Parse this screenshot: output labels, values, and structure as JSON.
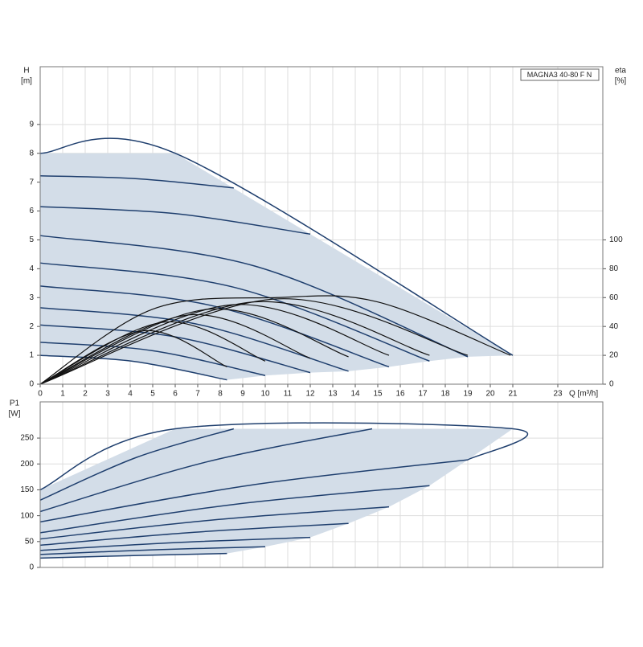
{
  "chart_data": [
    {
      "type": "line",
      "title": "MAGNA3 40-80 F N",
      "y_label": "H",
      "y_unit": "[m]",
      "y2_label": "eta",
      "y2_unit": "[%]",
      "x_label": "Q [m³/h]",
      "xlim": [
        0,
        25
      ],
      "xticks": [
        0,
        1,
        2,
        3,
        4,
        5,
        6,
        7,
        8,
        9,
        10,
        11,
        12,
        13,
        14,
        15,
        16,
        17,
        18,
        19,
        20,
        21,
        23
      ],
      "ylim": [
        0,
        11
      ],
      "yticks": [
        0,
        1,
        2,
        3,
        4,
        5,
        6,
        7,
        8,
        9
      ],
      "y2lim": [
        0,
        220
      ],
      "y2ticks": [
        0,
        20,
        40,
        60,
        80,
        100
      ],
      "grid": true,
      "area": {
        "color": "#d3dde8",
        "x": [
          0,
          6,
          21,
          19,
          17.3,
          15.5,
          13.7,
          12,
          10,
          8.3,
          4.15,
          0
        ],
        "y": [
          8,
          8,
          1,
          0.95,
          0.8,
          0.6,
          0.45,
          0.4,
          0.3,
          0.15,
          0.79,
          1
        ]
      },
      "series": [
        {
          "color": "#1f3f6e",
          "x": [
            0,
            6,
            21
          ],
          "values": [
            8,
            8,
            1
          ]
        },
        {
          "color": "#1f3f6e",
          "x": [
            0,
            4.3,
            8.6
          ],
          "values": [
            7.22,
            7.12,
            6.8
          ]
        },
        {
          "color": "#1f3f6e",
          "x": [
            0,
            6,
            12
          ],
          "values": [
            6.15,
            5.91,
            5.2
          ]
        },
        {
          "color": "#1f3f6e",
          "x": [
            0,
            9.5,
            19
          ],
          "values": [
            5.15,
            4.1,
            0.95
          ]
        },
        {
          "color": "#1f3f6e",
          "x": [
            0,
            8.65,
            17.3
          ],
          "values": [
            4.2,
            3.35,
            0.8
          ]
        },
        {
          "color": "#1f3f6e",
          "x": [
            0,
            7.75,
            15.5
          ],
          "values": [
            3.4,
            2.7,
            0.6
          ]
        },
        {
          "color": "#1f3f6e",
          "x": [
            0,
            6.85,
            13.7
          ],
          "values": [
            2.65,
            2.1,
            0.45
          ]
        },
        {
          "color": "#1f3f6e",
          "x": [
            0,
            6,
            12
          ],
          "values": [
            2.05,
            1.64,
            0.4
          ]
        },
        {
          "color": "#1f3f6e",
          "x": [
            0,
            5,
            10
          ],
          "values": [
            1.45,
            1.16,
            0.3
          ]
        },
        {
          "color": "#1f3f6e",
          "x": [
            0,
            4.15,
            8.3
          ],
          "values": [
            1,
            0.79,
            0.15
          ]
        },
        {
          "color": "#111111",
          "axis": "y2",
          "x": [
            0,
            5,
            10.5,
            15,
            20.9
          ],
          "values": [
            0,
            52,
            60,
            57,
            20
          ]
        },
        {
          "color": "#111111",
          "axis": "y2",
          "x": [
            0,
            4.6,
            8.3
          ],
          "values": [
            0,
            37,
            12
          ]
        },
        {
          "color": "#111111",
          "axis": "y2",
          "x": [
            0,
            5.5,
            10
          ],
          "values": [
            0,
            43,
            16
          ]
        },
        {
          "color": "#111111",
          "axis": "y2",
          "x": [
            0,
            6.6,
            12
          ],
          "values": [
            0,
            48,
            18
          ]
        },
        {
          "color": "#111111",
          "axis": "y2",
          "x": [
            0,
            7.5,
            13.7
          ],
          "values": [
            0,
            52,
            19
          ]
        },
        {
          "color": "#111111",
          "axis": "y2",
          "x": [
            0,
            8.5,
            15.5
          ],
          "values": [
            0,
            55,
            20
          ]
        },
        {
          "color": "#111111",
          "axis": "y2",
          "x": [
            0,
            9.5,
            17.3
          ],
          "values": [
            0,
            57,
            20
          ]
        },
        {
          "color": "#111111",
          "axis": "y2",
          "x": [
            0,
            10.4,
            19
          ],
          "values": [
            0,
            59,
            20
          ]
        }
      ]
    },
    {
      "type": "line",
      "y_label": "P1",
      "y_unit": "[W]",
      "xlim": [
        0,
        25
      ],
      "ylim": [
        0,
        320
      ],
      "yticks": [
        0,
        50,
        100,
        150,
        200,
        250
      ],
      "grid": true,
      "area": {
        "color": "#d3dde8",
        "x": [
          0,
          6,
          21,
          19,
          17.3,
          15.5,
          13.7,
          12,
          10,
          8.3,
          4.15,
          0
        ],
        "y": [
          150,
          268,
          268,
          208,
          158,
          117,
          85,
          58,
          40,
          27,
          23,
          18
        ]
      },
      "series": [
        {
          "color": "#1f3f6e",
          "x": [
            0,
            6,
            21,
            19
          ],
          "values": [
            150,
            268,
            268,
            208
          ]
        },
        {
          "color": "#1f3f6e",
          "x": [
            0,
            4.3,
            8.6
          ],
          "values": [
            130,
            213,
            268
          ]
        },
        {
          "color": "#1f3f6e",
          "x": [
            0,
            7.4,
            14.75
          ],
          "values": [
            108,
            204,
            268
          ]
        },
        {
          "color": "#1f3f6e",
          "x": [
            0,
            9.5,
            19
          ],
          "values": [
            88,
            160,
            208
          ]
        },
        {
          "color": "#1f3f6e",
          "x": [
            0,
            8.65,
            17.3
          ],
          "values": [
            67,
            122,
            158
          ]
        },
        {
          "color": "#1f3f6e",
          "x": [
            0,
            7.75,
            15.5
          ],
          "values": [
            55,
            92,
            117
          ]
        },
        {
          "color": "#1f3f6e",
          "x": [
            0,
            6.85,
            13.7
          ],
          "values": [
            43,
            68,
            85
          ]
        },
        {
          "color": "#1f3f6e",
          "x": [
            0,
            6,
            12
          ],
          "values": [
            33,
            48,
            58
          ]
        },
        {
          "color": "#1f3f6e",
          "x": [
            0,
            5,
            10
          ],
          "values": [
            25,
            34,
            40
          ]
        },
        {
          "color": "#1f3f6e",
          "x": [
            0,
            4.15,
            8.3
          ],
          "values": [
            18,
            23,
            27
          ]
        }
      ]
    }
  ]
}
